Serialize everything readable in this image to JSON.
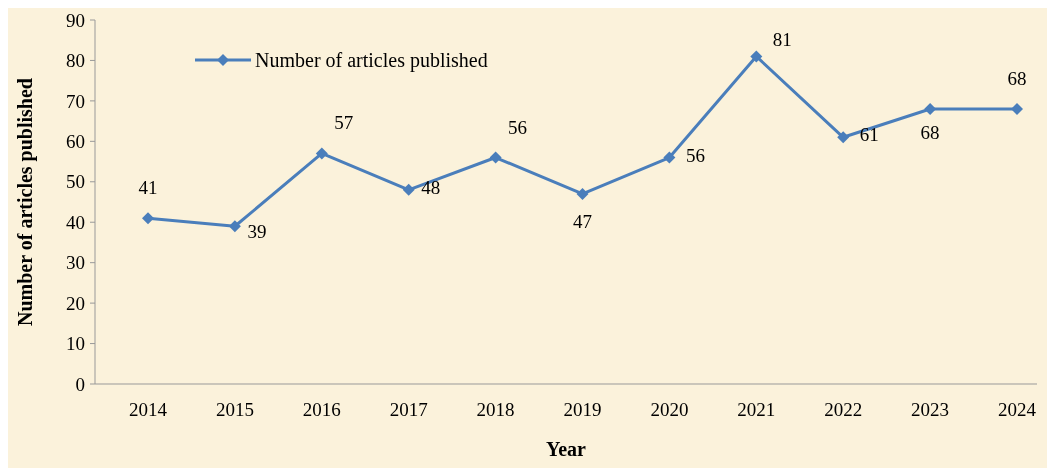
{
  "chart_data": {
    "type": "line",
    "xlabel": "Year",
    "ylabel": "Number of articles published",
    "categories": [
      "2014",
      "2015",
      "2016",
      "2017",
      "2018",
      "2019",
      "2020",
      "2021",
      "2022",
      "2023",
      "2024"
    ],
    "series": [
      {
        "name": "Number of articles published",
        "color": "#4a7ebb",
        "values": [
          41,
          39,
          57,
          48,
          56,
          47,
          56,
          81,
          61,
          68,
          68
        ]
      }
    ],
    "ylim": [
      0,
      90
    ],
    "yticks": [
      0,
      10,
      20,
      30,
      40,
      50,
      60,
      70,
      80,
      90
    ],
    "data_labels": true,
    "legend": "top left",
    "marker": "diamond",
    "line_style": "solid",
    "grid": false
  }
}
